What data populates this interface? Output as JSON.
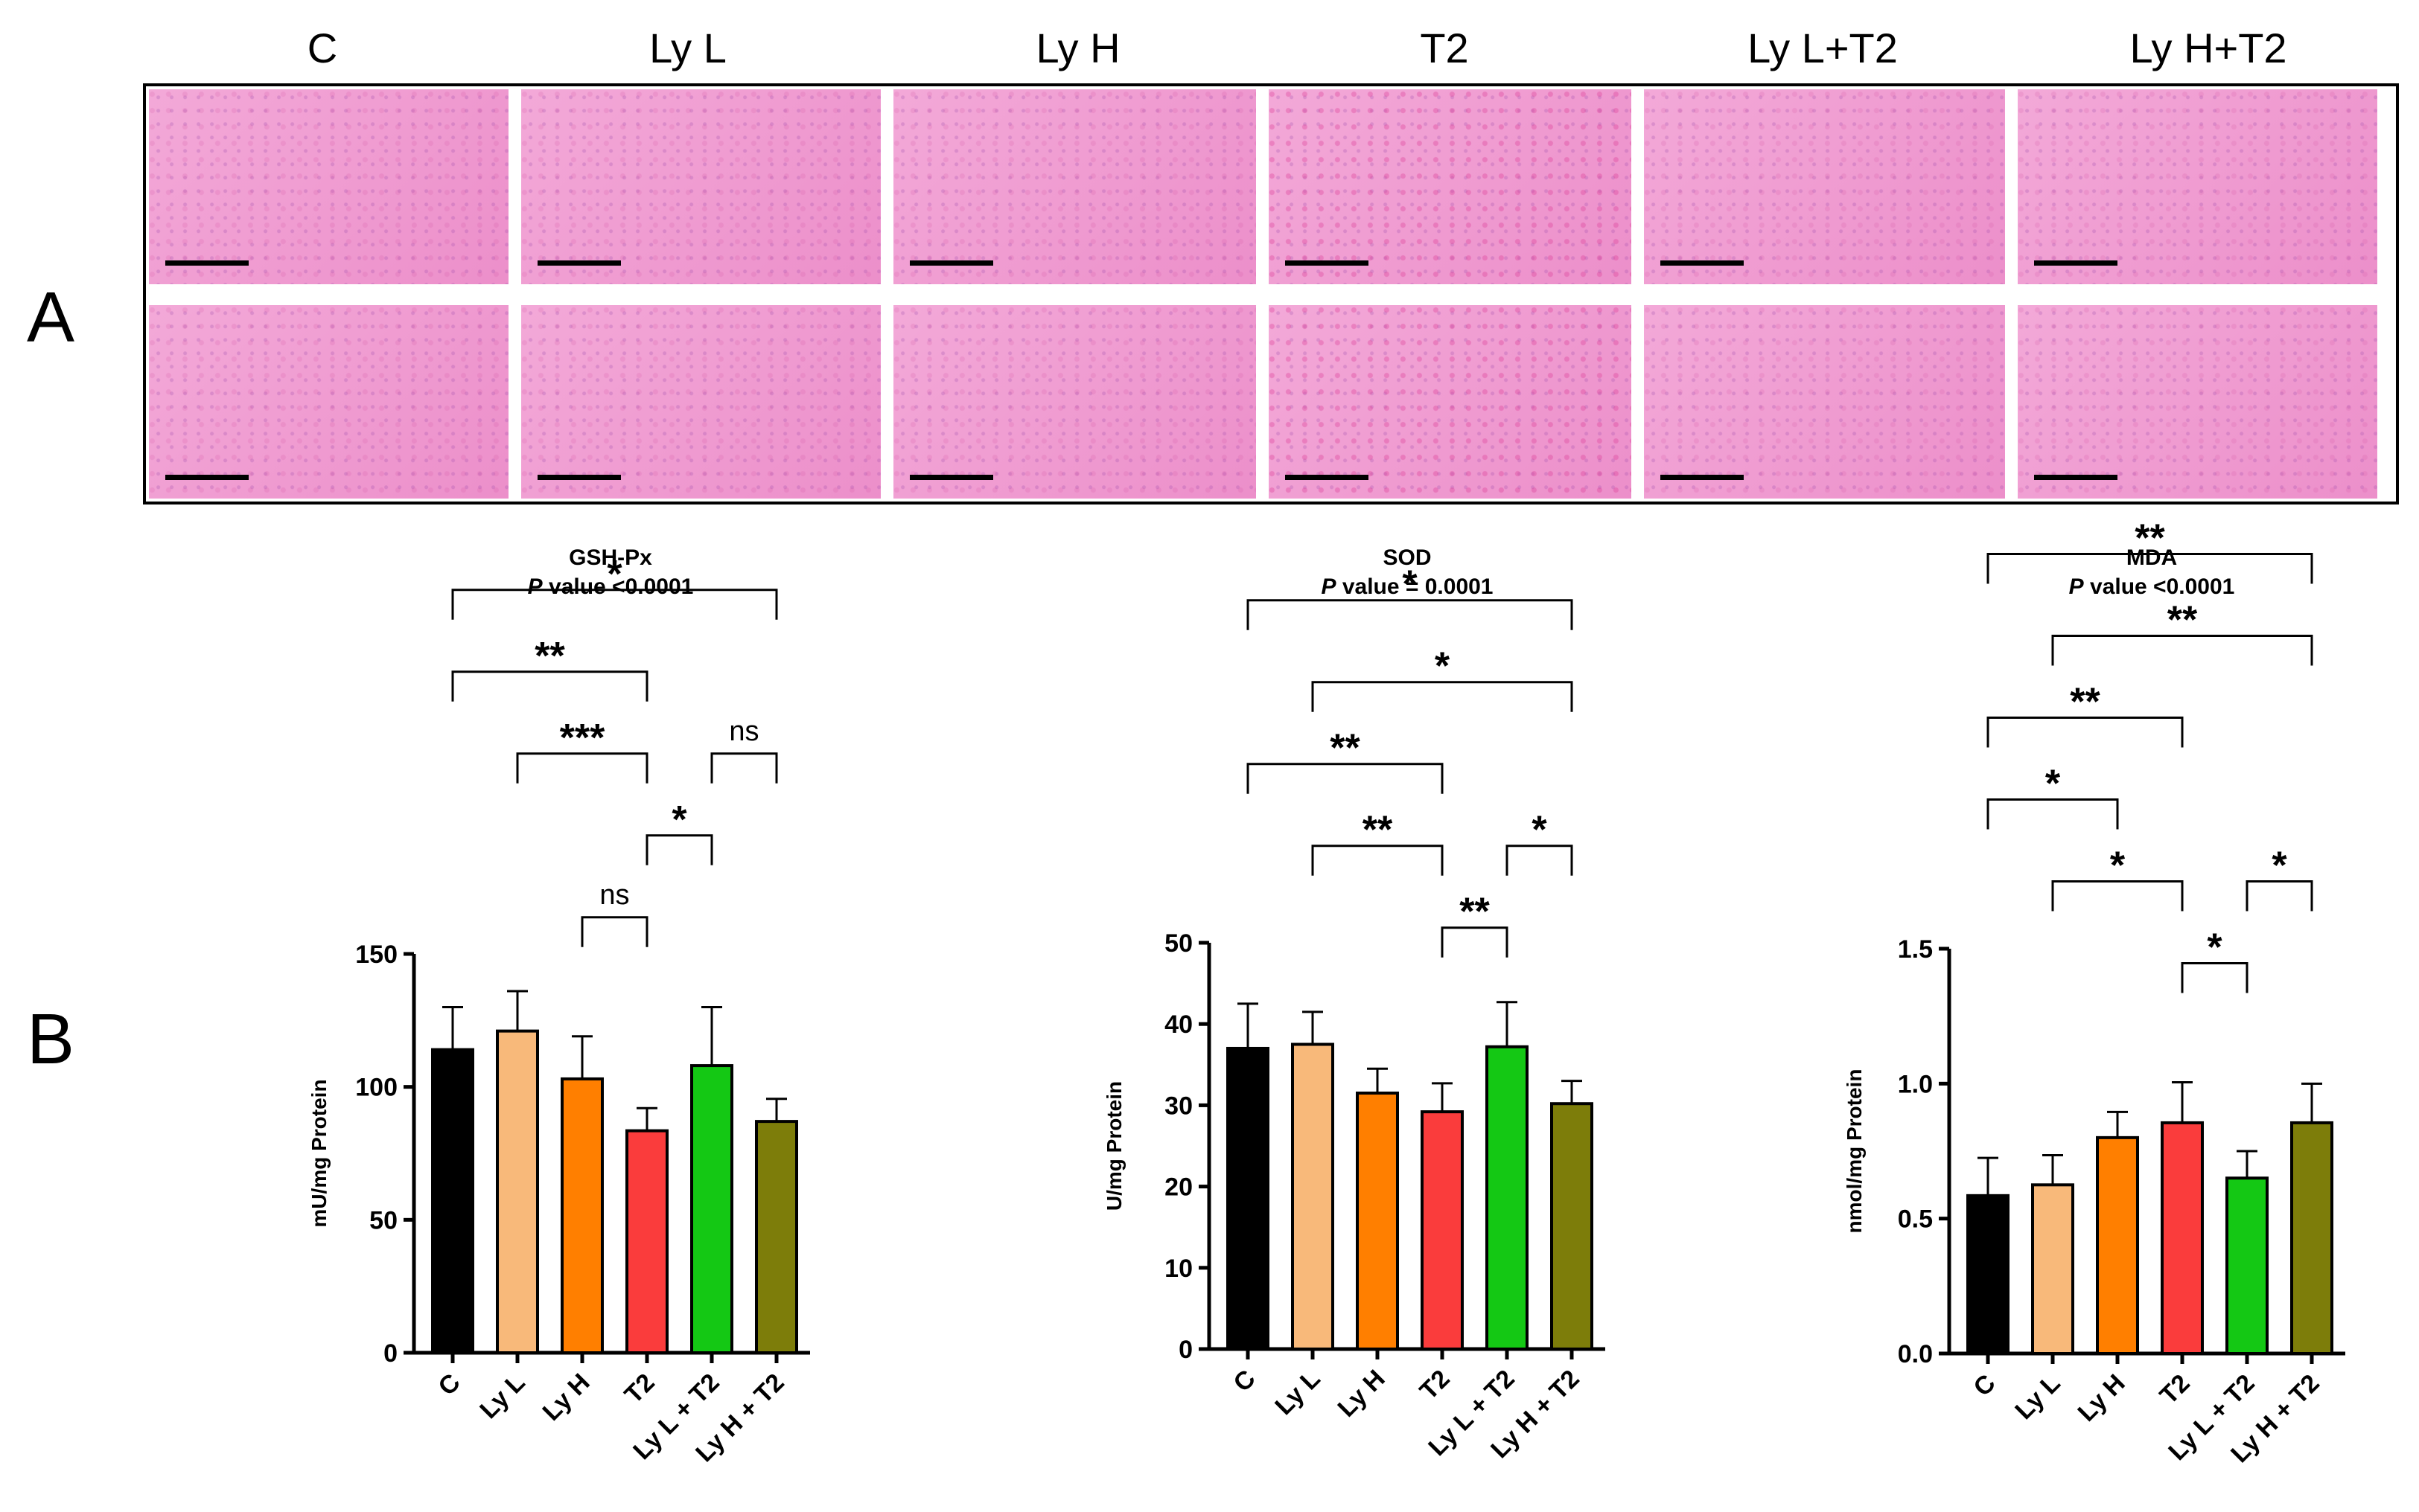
{
  "panel_labels": {
    "a": "A",
    "b": "B"
  },
  "histology": {
    "columns": [
      "C",
      "Ly L",
      "Ly H",
      "T2",
      "Ly L+T2",
      "Ly H+T2"
    ],
    "tile_color_low": "#f3a9d8",
    "tile_color_high": "#ec8fca"
  },
  "colors": {
    "C": "#000000",
    "Ly L": "#f8b97a",
    "Ly H": "#ff7f00",
    "T2": "#fa3c3c",
    "Ly L + T2": "#14c814",
    "Ly H + T2": "#7d7d0a"
  },
  "chart_data": [
    {
      "type": "bar",
      "title": "GSH-Px",
      "subtitle_italic": "P",
      "subtitle_rest": " value <0.0001",
      "ylabel": "mU/mg Protein",
      "ylim": [
        0,
        150
      ],
      "yticks": [
        0,
        50,
        100,
        150
      ],
      "ytick_labels": [
        "0",
        "50",
        "100",
        "150"
      ],
      "categories": [
        "C",
        "Ly L",
        "Ly H",
        "T2",
        "Ly L + T2",
        "Ly H + T2"
      ],
      "values": [
        114,
        121,
        103,
        83.5,
        108,
        87
      ],
      "errors": [
        16,
        15,
        16,
        8.5,
        22,
        8.5
      ],
      "comparisons": [
        {
          "from": 0,
          "to": 5,
          "label": "*"
        },
        {
          "from": 0,
          "to": 3,
          "label": "**"
        },
        {
          "from": 1,
          "to": 3,
          "label": "***"
        },
        {
          "from": 2,
          "to": 3,
          "label": "ns"
        },
        {
          "from": 3,
          "to": 4,
          "label": "*"
        },
        {
          "from": 4,
          "to": 5,
          "label": "ns"
        }
      ]
    },
    {
      "type": "bar",
      "title": "SOD",
      "subtitle_italic": "P",
      "subtitle_rest": " value = 0.0001",
      "ylabel": "U/mg Protein",
      "ylim": [
        0,
        50
      ],
      "yticks": [
        0,
        10,
        20,
        30,
        40,
        50
      ],
      "ytick_labels": [
        "0",
        "10",
        "20",
        "30",
        "40",
        "50"
      ],
      "categories": [
        "C",
        "Ly L",
        "Ly H",
        "T2",
        "Ly L + T2",
        "Ly H + T2"
      ],
      "values": [
        37,
        37.5,
        31.5,
        29.2,
        37.2,
        30.2
      ],
      "errors": [
        5.5,
        4,
        3,
        3.5,
        5.5,
        2.8
      ],
      "comparisons": [
        {
          "from": 0,
          "to": 5,
          "label": "*"
        },
        {
          "from": 1,
          "to": 5,
          "label": "*"
        },
        {
          "from": 0,
          "to": 3,
          "label": "**"
        },
        {
          "from": 1,
          "to": 3,
          "label": "**"
        },
        {
          "from": 3,
          "to": 4,
          "label": "**"
        },
        {
          "from": 4,
          "to": 5,
          "label": "*"
        }
      ]
    },
    {
      "type": "bar",
      "title": "MDA",
      "subtitle_italic": "P",
      "subtitle_rest": " value <0.0001",
      "ylabel": "nmol/mg Protein",
      "ylim": [
        0,
        1.5
      ],
      "yticks": [
        0,
        0.5,
        1.0,
        1.5
      ],
      "ytick_labels": [
        "0.0",
        "0.5",
        "1.0",
        "1.5"
      ],
      "categories": [
        "C",
        "Ly L",
        "Ly H",
        "T2",
        "Ly L + T2",
        "Ly H + T2"
      ],
      "values": [
        0.585,
        0.625,
        0.8,
        0.855,
        0.65,
        0.855
      ],
      "errors": [
        0.14,
        0.11,
        0.095,
        0.15,
        0.1,
        0.145
      ],
      "comparisons": [
        {
          "from": 0,
          "to": 5,
          "label": "**"
        },
        {
          "from": 1,
          "to": 5,
          "label": "**"
        },
        {
          "from": 0,
          "to": 3,
          "label": "**"
        },
        {
          "from": 1,
          "to": 3,
          "label": "*"
        },
        {
          "from": 0,
          "to": 2,
          "label": "*"
        },
        {
          "from": 3,
          "to": 4,
          "label": "*"
        },
        {
          "from": 4,
          "to": 5,
          "label": "*"
        }
      ]
    }
  ]
}
